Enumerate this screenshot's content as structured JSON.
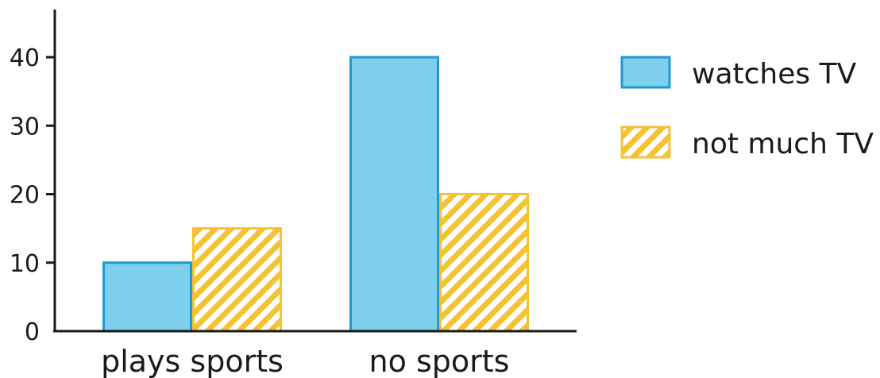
{
  "chart_data": {
    "type": "bar",
    "categories": [
      "plays sports",
      "no sports"
    ],
    "series": [
      {
        "name": "watches TV",
        "values": [
          10,
          40
        ],
        "color": "#7dcfec",
        "stroke": "#1d9ad6",
        "pattern": "solid"
      },
      {
        "name": "not much TV",
        "values": [
          15,
          20
        ],
        "color": "#f6c233",
        "stroke": "#f6c233",
        "pattern": "diagonal-stripes"
      }
    ],
    "yticks": [
      0,
      10,
      20,
      30,
      40
    ],
    "ylim": [
      0,
      47
    ],
    "title": "",
    "xlabel": "",
    "ylabel": "",
    "grid": false,
    "legend_position": "right"
  }
}
